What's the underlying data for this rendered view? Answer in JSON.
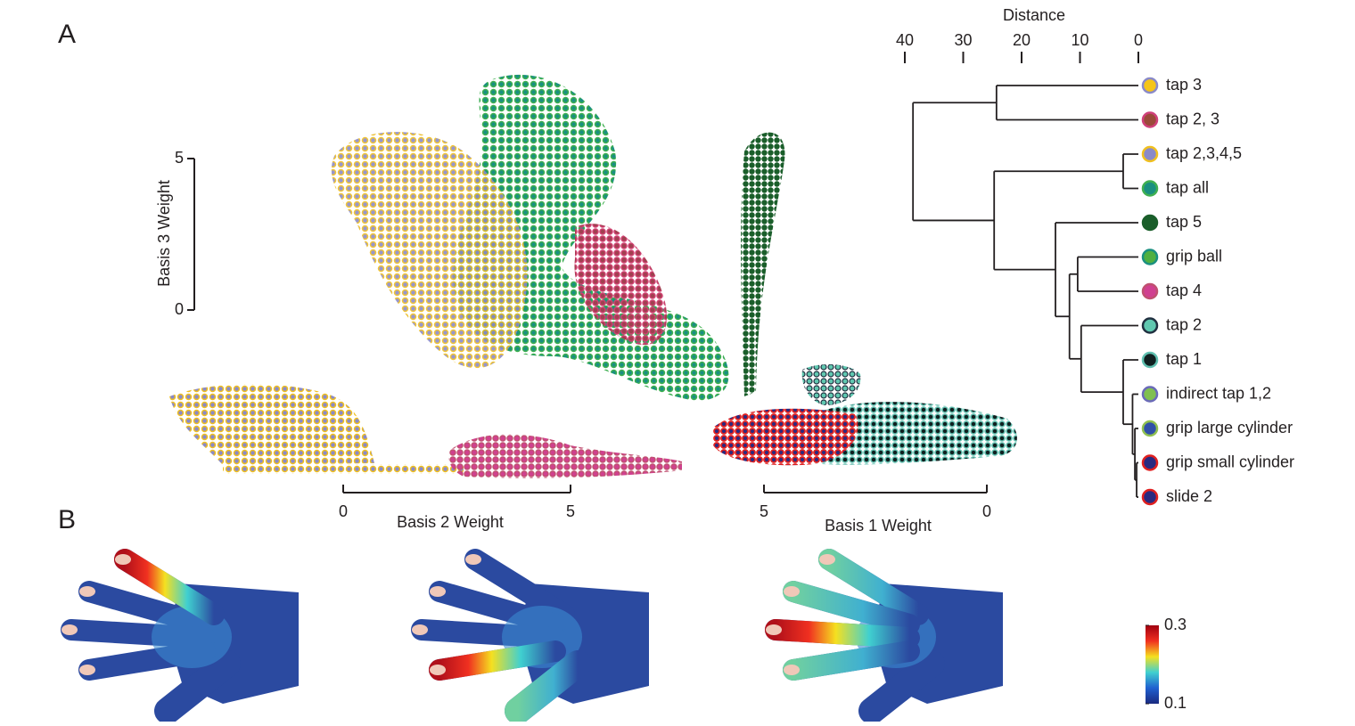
{
  "panels": {
    "a": "A",
    "b": "B"
  },
  "scatter": {
    "axes": [
      {
        "label": "Basis 3 Weight",
        "lim": [
          0,
          5
        ],
        "ticks": [
          5,
          0
        ]
      },
      {
        "label": "Basis 2 Weight",
        "lim": [
          0,
          5
        ],
        "ticks": [
          0,
          5
        ]
      },
      {
        "label": "Basis 1 Weight",
        "lim": [
          0,
          5
        ],
        "ticks": [
          5,
          0
        ]
      }
    ]
  },
  "dendrogram": {
    "axis_label": "Distance",
    "xlim": [
      40,
      0
    ],
    "xticks": [
      40,
      30,
      20,
      10,
      0
    ],
    "leaves": [
      {
        "name": "tap 3",
        "fill": "#f5c518",
        "stroke": "#8a8ac8"
      },
      {
        "name": "tap 2, 3",
        "fill": "#9b4a3a",
        "stroke": "#d0407a"
      },
      {
        "name": "tap 2,3,4,5",
        "fill": "#8a8ac8",
        "stroke": "#f0c020"
      },
      {
        "name": "tap all",
        "fill": "#1a9080",
        "stroke": "#40b050"
      },
      {
        "name": "tap 5",
        "fill": "#1a5e2a",
        "stroke": "#1a5e2a"
      },
      {
        "name": "grip ball",
        "fill": "#50b040",
        "stroke": "#1a9080"
      },
      {
        "name": "tap 4",
        "fill": "#d04090",
        "stroke": "#c05070"
      },
      {
        "name": "tap 2",
        "fill": "#60c8b0",
        "stroke": "#203040"
      },
      {
        "name": "tap 1",
        "fill": "#102020",
        "stroke": "#60c0b0"
      },
      {
        "name": "indirect tap 1,2",
        "fill": "#80c050",
        "stroke": "#6a6ab8"
      },
      {
        "name": "grip large cylinder",
        "fill": "#3050a8",
        "stroke": "#90c050"
      },
      {
        "name": "grip small cylinder",
        "fill": "#2a2a80",
        "stroke": "#e02020"
      },
      {
        "name": "slide 2",
        "fill": "#2a2a80",
        "stroke": "#e02020"
      }
    ],
    "merges": [
      {
        "left": 11,
        "right": 12,
        "distance": 0.3
      },
      {
        "left": 10,
        "right": 13,
        "distance": 0.6
      },
      {
        "left": 9,
        "right": 14,
        "distance": 1.0
      },
      {
        "left": 8,
        "right": 15,
        "distance": 2.6
      },
      {
        "left": 7,
        "right": 16,
        "distance": 9.8
      },
      {
        "left": 5,
        "right": 6,
        "distance": 10.4
      },
      {
        "left": 18,
        "right": 17,
        "distance": 11.8
      },
      {
        "left": 4,
        "right": 19,
        "distance": 14.2
      },
      {
        "left": 2,
        "right": 3,
        "distance": 2.6
      },
      {
        "left": 21,
        "right": 20,
        "distance": 24.7
      },
      {
        "left": 0,
        "right": 1,
        "distance": 24.3
      },
      {
        "left": 23,
        "right": 22,
        "distance": 38.6
      }
    ]
  },
  "colorbar": {
    "lim": [
      0.1,
      0.3
    ],
    "ticks": [
      0.3,
      0.1
    ]
  }
}
